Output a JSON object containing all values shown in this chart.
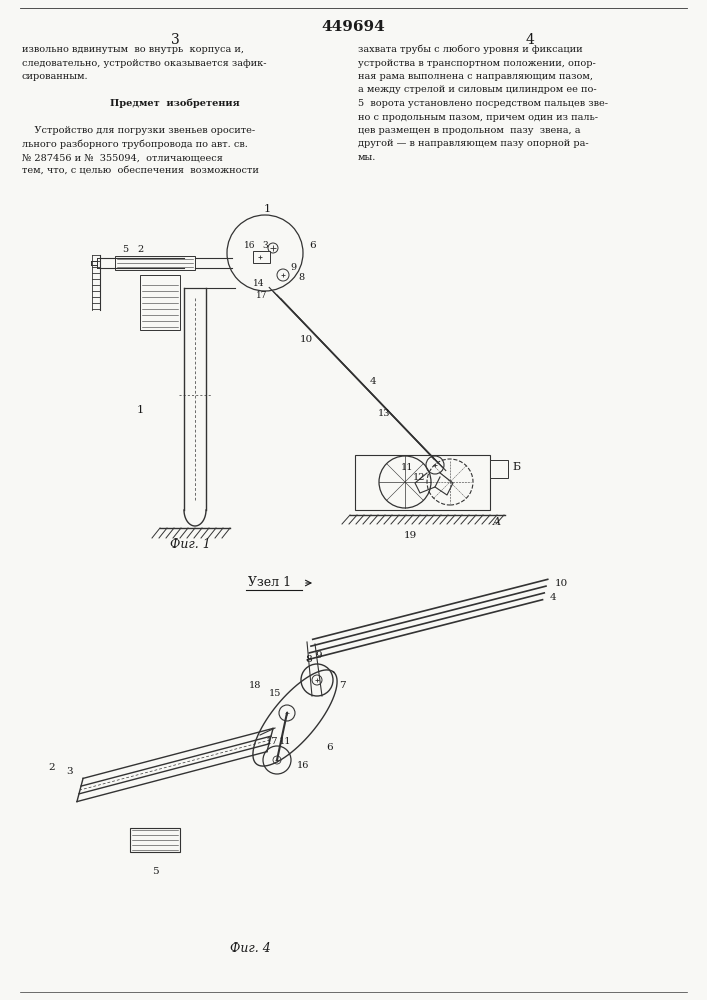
{
  "page_width": 7.07,
  "page_height": 10.0,
  "dpi": 100,
  "bg_color": "#f8f8f5",
  "text_color": "#1a1a1a",
  "line_color": "#333333",
  "patent_number": "449694",
  "page_numbers": [
    "3",
    "4"
  ],
  "col1_text": [
    "извольно вдвинутым  во внутрь  корпуса и,",
    "следовательно, устройство оказывается зафик-",
    "сированным.",
    "",
    "Предмет  изобретения",
    "",
    "    Устройство для погрузки звеньев оросите-",
    "льного разборного трубопровода по авт. св.",
    "№ 287456 и №  355094,  отличающееся",
    "тем, что, с целью  обеспечения  возможности"
  ],
  "col2_text": [
    "захвата трубы с любого уровня и фиксации",
    "устройства в транспортном положении, опор-",
    "ная рама выполнена с направляющим пазом,",
    "а между стрелой и силовым цилиндром ее по-",
    "5  ворота установлено посредством пальцев зве-",
    "но с продольным пазом, причем один из паль-",
    "цев размещен в продольном  пазу  звена, а",
    "другой — в направляющем пазу опорной ра-",
    "мы."
  ],
  "fig1_caption": "Фиг. 1",
  "fig2_caption": "Фиг. 4",
  "fig2_label": "Узел 1",
  "label_A": "A",
  "label_B": "Б"
}
